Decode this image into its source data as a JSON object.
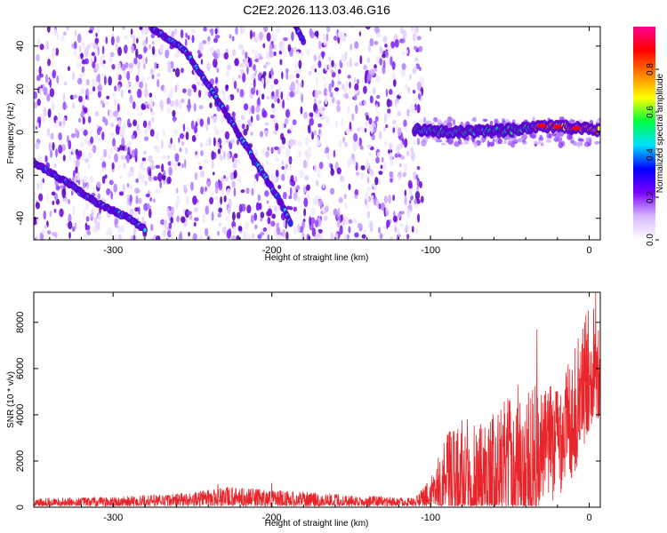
{
  "title": "C2E2.2026.113.03.46.G16",
  "colors": {
    "snr_line": "#e8252a",
    "track": "#6a00d8",
    "axis": "#000000"
  },
  "chart_data": [
    {
      "type": "heatmap",
      "xlabel": "Height of straight line (km)",
      "ylabel": "Frequency (Hz)",
      "xlim": [
        -350,
        7
      ],
      "ylim": [
        -50,
        49
      ],
      "xticks": [
        -300,
        -200,
        -100,
        0
      ],
      "yticks": [
        -40,
        -20,
        0,
        20,
        40
      ],
      "colorbar": {
        "label": "Normalized spectral amplitude",
        "range": [
          0.0,
          1.0
        ],
        "ticks": [
          "0.0",
          "0.2",
          "0.4",
          "0.6",
          "0.8"
        ],
        "tick_values": [
          0.0,
          0.2,
          0.4,
          0.6,
          0.8
        ],
        "colormap": [
          "#ffffff",
          "#d8b8ff",
          "#7a00ff",
          "#0000ff",
          "#00e0ff",
          "#00ff40",
          "#ffff00",
          "#ff8000",
          "#ff0000",
          "#ff0090"
        ]
      },
      "tracks": [
        {
          "x": [
            -275,
            -255,
            -240,
            -225,
            -210,
            -195,
            -188
          ],
          "y": [
            48,
            38,
            22,
            4,
            -14,
            -32,
            -42
          ]
        },
        {
          "x": [
            -350,
            -330,
            -310,
            -290,
            -280
          ],
          "y": [
            -14,
            -23,
            -33,
            -40,
            -45
          ]
        },
        {
          "x": [
            -185,
            -180
          ],
          "y": [
            49,
            42
          ]
        },
        {
          "x": [
            -110,
            -90,
            -70,
            -50,
            -30,
            -10,
            7
          ],
          "y": [
            1,
            0,
            0,
            1,
            3,
            2,
            1
          ]
        }
      ],
      "noise_region_x": [
        -350,
        -105
      ]
    },
    {
      "type": "line",
      "xlabel": "Height of straight line (km)",
      "ylabel": "SNR (10 * v/v)",
      "xlim": [
        -350,
        7
      ],
      "ylim": [
        0,
        9300
      ],
      "xticks": [
        -300,
        -200,
        -100,
        0
      ],
      "yticks": [
        0,
        2000,
        4000,
        6000,
        8000
      ],
      "envelope": {
        "x": [
          -350,
          -300,
          -250,
          -230,
          -200,
          -150,
          -110,
          -100,
          -90,
          -80,
          -70,
          -60,
          -50,
          -40,
          -35,
          -30,
          -20,
          -10,
          -5,
          0,
          3,
          7
        ],
        "base": [
          150,
          200,
          300,
          400,
          350,
          250,
          200,
          350,
          900,
          1200,
          1200,
          1300,
          1500,
          1800,
          2000,
          2500,
          3000,
          4000,
          5000,
          6000,
          6500,
          6000
        ],
        "amp": [
          250,
          250,
          350,
          500,
          400,
          300,
          200,
          900,
          2200,
          2800,
          2600,
          2800,
          3400,
          3000,
          3500,
          2500,
          2600,
          2700,
          2800,
          2800,
          2500,
          2300
        ]
      },
      "peaks": [
        {
          "x": -33,
          "y": 7700
        },
        {
          "x": -45,
          "y": 5300
        },
        {
          "x": 4,
          "y": 9300
        },
        {
          "x": -234,
          "y": 1000
        },
        {
          "x": -200,
          "y": 1050
        }
      ]
    }
  ]
}
